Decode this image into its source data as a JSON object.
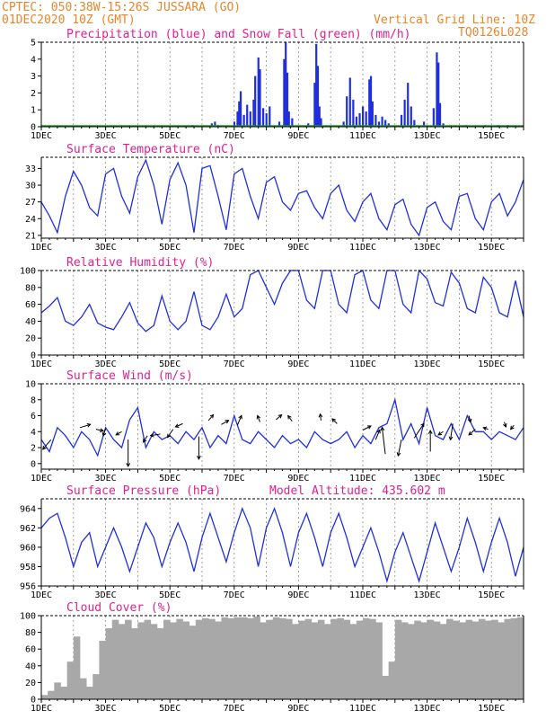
{
  "header": {
    "left_line1": "CPTEC:   050:38W-15:26S   JUSSARA (GO)",
    "left_line2": "01DEC2020 10Z (GMT)",
    "right_line1": "Vertical Grid Line: 10Z",
    "right_line2": "TQ0126L028"
  },
  "colors": {
    "header": "#e8862a",
    "title": "#e0208e",
    "line": "#1f2fe0",
    "snow": "#1a9a1a",
    "cloud": "#a8a8a8",
    "wind_arrow": "#000000"
  },
  "chart_data": [
    {
      "type": "bar",
      "title": "Precipitation (blue) and Snow Fall (green) (mm/h)",
      "x_labels": [
        "1DEC",
        "3DEC",
        "5DEC",
        "7DEC",
        "9DEC",
        "11DEC",
        "13DEC",
        "15DEC"
      ],
      "xlim_days": [
        0,
        15
      ],
      "ylim": [
        0,
        5
      ],
      "y_ticks": [
        "0",
        "1",
        "2",
        "3",
        "4",
        "5"
      ],
      "series": [
        {
          "name": "Precipitation",
          "values": [
            [
              1.4,
              0.05
            ],
            [
              2.8,
              0.05
            ],
            [
              4.7,
              0.1
            ],
            [
              5.3,
              0.2
            ],
            [
              5.4,
              0.3
            ],
            [
              5.5,
              0.1
            ],
            [
              6.0,
              0.3
            ],
            [
              6.1,
              0.9
            ],
            [
              6.15,
              1.5
            ],
            [
              6.2,
              2.1
            ],
            [
              6.3,
              0.7
            ],
            [
              6.4,
              1.3
            ],
            [
              6.5,
              0.9
            ],
            [
              6.6,
              1.6
            ],
            [
              6.65,
              3.0
            ],
            [
              6.75,
              4.1
            ],
            [
              6.8,
              3.4
            ],
            [
              6.9,
              1.1
            ],
            [
              7.0,
              0.8
            ],
            [
              7.1,
              1.2
            ],
            [
              7.4,
              0.3
            ],
            [
              7.55,
              4.0
            ],
            [
              7.6,
              5.0
            ],
            [
              7.65,
              3.2
            ],
            [
              7.7,
              0.9
            ],
            [
              7.8,
              0.5
            ],
            [
              8.3,
              0.2
            ],
            [
              8.5,
              2.6
            ],
            [
              8.55,
              4.9
            ],
            [
              8.6,
              3.6
            ],
            [
              8.65,
              1.2
            ],
            [
              8.7,
              0.5
            ],
            [
              9.4,
              0.3
            ],
            [
              9.5,
              1.8
            ],
            [
              9.6,
              2.9
            ],
            [
              9.7,
              1.6
            ],
            [
              9.8,
              0.6
            ],
            [
              9.9,
              0.8
            ],
            [
              10.0,
              1.2
            ],
            [
              10.1,
              0.9
            ],
            [
              10.2,
              2.8
            ],
            [
              10.25,
              3.0
            ],
            [
              10.3,
              1.5
            ],
            [
              10.4,
              0.7
            ],
            [
              10.5,
              0.3
            ],
            [
              10.6,
              0.6
            ],
            [
              10.7,
              0.4
            ],
            [
              10.8,
              0.2
            ],
            [
              11.2,
              0.7
            ],
            [
              11.3,
              1.6
            ],
            [
              11.4,
              2.6
            ],
            [
              11.5,
              1.2
            ],
            [
              11.6,
              0.4
            ],
            [
              11.9,
              0.3
            ],
            [
              12.2,
              1.1
            ],
            [
              12.3,
              4.4
            ],
            [
              12.35,
              3.8
            ],
            [
              12.4,
              1.4
            ],
            [
              12.5,
              0.2
            ],
            [
              13.2,
              0.1
            ],
            [
              13.8,
              0.1
            ],
            [
              14.2,
              0.1
            ],
            [
              14.5,
              0.1
            ]
          ]
        },
        {
          "name": "Snow Fall",
          "values": []
        }
      ]
    },
    {
      "type": "line",
      "title": "Surface Temperature (nC)",
      "x_labels": [
        "1DEC",
        "3DEC",
        "5DEC",
        "7DEC",
        "9DEC",
        "11DEC",
        "13DEC",
        "15DEC"
      ],
      "xlim_days": [
        0,
        15
      ],
      "ylim": [
        20.5,
        35
      ],
      "y_ticks": [
        "21",
        "24",
        "27",
        "30",
        "33"
      ],
      "x": [
        0,
        0.25,
        0.5,
        0.75,
        1,
        1.25,
        1.5,
        1.75,
        2,
        2.25,
        2.5,
        2.75,
        3,
        3.25,
        3.5,
        3.75,
        4,
        4.25,
        4.5,
        4.75,
        5,
        5.25,
        5.5,
        5.75,
        6,
        6.25,
        6.5,
        6.75,
        7,
        7.25,
        7.5,
        7.75,
        8,
        8.25,
        8.5,
        8.75,
        9,
        9.25,
        9.5,
        9.75,
        10,
        10.25,
        10.5,
        10.75,
        11,
        11.25,
        11.5,
        11.75,
        12,
        12.25,
        12.5,
        12.75,
        13,
        13.25,
        13.5,
        13.75,
        14,
        14.25,
        14.5,
        14.75,
        15
      ],
      "values": [
        27,
        24.5,
        21.5,
        28,
        32.5,
        30,
        26,
        24.5,
        32,
        33,
        28,
        25,
        31.5,
        34.5,
        30,
        23,
        31,
        34,
        30,
        21.5,
        33,
        33.5,
        28,
        22,
        32,
        33,
        28,
        24,
        30.5,
        31.5,
        27,
        25.5,
        28.5,
        29,
        26,
        24,
        28.5,
        30,
        25.5,
        23.5,
        27,
        28.5,
        24,
        22,
        26.5,
        27.5,
        23,
        21,
        26,
        27,
        23.5,
        22,
        28,
        28.5,
        24,
        22,
        27,
        28.5,
        24.5,
        27,
        31
      ]
    },
    {
      "type": "line",
      "title": "Relative Humidity (%)",
      "x_labels": [
        "1DEC",
        "3DEC",
        "5DEC",
        "7DEC",
        "9DEC",
        "11DEC",
        "13DEC",
        "15DEC"
      ],
      "xlim_days": [
        0,
        15
      ],
      "ylim": [
        0,
        100
      ],
      "y_ticks": [
        "0",
        "20",
        "40",
        "60",
        "80",
        "100"
      ],
      "x": [
        0,
        0.25,
        0.5,
        0.75,
        1,
        1.25,
        1.5,
        1.75,
        2,
        2.25,
        2.5,
        2.75,
        3,
        3.25,
        3.5,
        3.75,
        4,
        4.25,
        4.5,
        4.75,
        5,
        5.25,
        5.5,
        5.75,
        6,
        6.25,
        6.5,
        6.75,
        7,
        7.25,
        7.5,
        7.75,
        8,
        8.25,
        8.5,
        8.75,
        9,
        9.25,
        9.5,
        9.75,
        10,
        10.25,
        10.5,
        10.75,
        11,
        11.25,
        11.5,
        11.75,
        12,
        12.25,
        12.5,
        12.75,
        13,
        13.25,
        13.5,
        13.75,
        14,
        14.25,
        14.5,
        14.75,
        15
      ],
      "values": [
        50,
        58,
        68,
        40,
        35,
        45,
        60,
        38,
        33,
        30,
        45,
        62,
        38,
        28,
        35,
        70,
        40,
        30,
        40,
        75,
        35,
        30,
        45,
        72,
        45,
        55,
        95,
        100,
        80,
        60,
        85,
        100,
        100,
        65,
        55,
        100,
        100,
        60,
        50,
        95,
        100,
        65,
        55,
        100,
        100,
        60,
        50,
        100,
        90,
        62,
        58,
        98,
        85,
        55,
        50,
        92,
        80,
        50,
        45,
        88,
        45
      ]
    },
    {
      "type": "line",
      "title": "Surface Wind (m/s)",
      "x_labels": [
        "1DEC",
        "3DEC",
        "5DEC",
        "7DEC",
        "9DEC",
        "11DEC",
        "13DEC",
        "15DEC"
      ],
      "xlim_days": [
        0,
        15
      ],
      "ylim": [
        -0.7,
        10
      ],
      "y_ticks": [
        "0",
        "2",
        "4",
        "6",
        "8",
        "10"
      ],
      "x": [
        0,
        0.25,
        0.5,
        0.75,
        1,
        1.25,
        1.5,
        1.75,
        2,
        2.25,
        2.5,
        2.75,
        3,
        3.25,
        3.5,
        3.75,
        4,
        4.25,
        4.5,
        4.75,
        5,
        5.25,
        5.5,
        5.75,
        6,
        6.25,
        6.5,
        6.75,
        7,
        7.25,
        7.5,
        7.75,
        8,
        8.25,
        8.5,
        8.75,
        9,
        9.25,
        9.5,
        9.75,
        10,
        10.25,
        10.5,
        10.75,
        11,
        11.25,
        11.5,
        11.75,
        12,
        12.25,
        12.5,
        12.75,
        13,
        13.25,
        13.5,
        13.75,
        14,
        14.25,
        14.5,
        14.75,
        15
      ],
      "values": [
        3,
        1.5,
        4.5,
        3.5,
        2,
        4,
        3,
        1,
        4.5,
        3,
        2,
        5.5,
        7,
        2,
        4,
        3,
        3.5,
        2.5,
        4,
        3,
        4.5,
        2,
        3.5,
        2.5,
        6,
        3,
        2.5,
        4,
        3,
        2,
        3.5,
        2.5,
        3,
        2,
        4,
        3,
        2.5,
        3,
        4,
        2,
        3.5,
        2.5,
        4.5,
        5,
        8,
        3,
        5,
        2.5,
        7,
        3.5,
        3,
        5,
        3,
        6,
        4,
        4,
        3,
        4,
        3.5,
        3,
        4.5
      ],
      "arrows": [
        [
          0.3,
          3,
          -1,
          -1.2
        ],
        [
          1.2,
          4.5,
          1.3,
          0.4
        ],
        [
          1.7,
          4.3,
          0.9,
          -0.2
        ],
        [
          2.0,
          4.4,
          -0.3,
          -0.9
        ],
        [
          2.5,
          4,
          -0.7,
          -0.4
        ],
        [
          2.7,
          3,
          0,
          -3.3
        ],
        [
          3.3,
          3.5,
          -0.5,
          -0.8
        ],
        [
          3.7,
          3.7,
          -1.2,
          -0.2
        ],
        [
          4.1,
          4.3,
          -0.7,
          -1
        ],
        [
          4.4,
          5,
          -0.9,
          -0.4
        ],
        [
          4.9,
          3.4,
          0,
          -2.8
        ],
        [
          5.2,
          5.4,
          0.6,
          0.7
        ],
        [
          5.6,
          4.9,
          0.9,
          0.5
        ],
        [
          6.1,
          4.8,
          0.5,
          1.2
        ],
        [
          6.8,
          5.2,
          -0.3,
          0.8
        ],
        [
          7.3,
          5.5,
          0.7,
          0.6
        ],
        [
          7.8,
          5.3,
          -0.5,
          0.7
        ],
        [
          8.7,
          5.4,
          -0.1,
          0.8
        ],
        [
          9.2,
          5,
          -0.6,
          0.6
        ],
        [
          10.0,
          4.2,
          1,
          0.5
        ],
        [
          10.4,
          3,
          0.5,
          1.2
        ],
        [
          10.7,
          1.2,
          -0.4,
          3.3
        ],
        [
          11.2,
          3,
          -0.4,
          -2
        ],
        [
          11.6,
          3.2,
          1.2,
          1.8
        ],
        [
          12.1,
          1.5,
          0,
          2.6
        ],
        [
          12.5,
          4,
          -0.6,
          -0.4
        ],
        [
          12.8,
          5,
          -0.3,
          -2
        ],
        [
          13.3,
          6,
          0.2,
          -0.8
        ],
        [
          13.5,
          4.3,
          -0.8,
          -0.7
        ],
        [
          13.9,
          4.3,
          -0.6,
          0.2
        ],
        [
          14.4,
          5.2,
          0.2,
          -0.6
        ],
        [
          14.7,
          4.8,
          -0.4,
          -0.5
        ]
      ]
    },
    {
      "type": "line",
      "title": "Surface Pressure (hPa)",
      "annotation": "Model Altitude: 435.602  m",
      "x_labels": [
        "1DEC",
        "3DEC",
        "5DEC",
        "7DEC",
        "9DEC",
        "11DEC",
        "13DEC",
        "15DEC"
      ],
      "xlim_days": [
        0,
        15
      ],
      "ylim": [
        956,
        965
      ],
      "y_ticks": [
        "956",
        "958",
        "960",
        "962",
        "964"
      ],
      "x": [
        0,
        0.25,
        0.5,
        0.75,
        1,
        1.25,
        1.5,
        1.75,
        2,
        2.25,
        2.5,
        2.75,
        3,
        3.25,
        3.5,
        3.75,
        4,
        4.25,
        4.5,
        4.75,
        5,
        5.25,
        5.5,
        5.75,
        6,
        6.25,
        6.5,
        6.75,
        7,
        7.25,
        7.5,
        7.75,
        8,
        8.25,
        8.5,
        8.75,
        9,
        9.25,
        9.5,
        9.75,
        10,
        10.25,
        10.5,
        10.75,
        11,
        11.25,
        11.5,
        11.75,
        12,
        12.25,
        12.5,
        12.75,
        13,
        13.25,
        13.5,
        13.75,
        14,
        14.25,
        14.5,
        14.75,
        15
      ],
      "values": [
        962,
        963,
        963.5,
        961,
        958,
        960.5,
        961.5,
        958,
        960,
        962,
        960,
        957.5,
        960,
        962.5,
        961,
        958,
        960.5,
        962.5,
        960.5,
        957.5,
        961,
        963.5,
        961,
        958.5,
        961.5,
        964,
        962,
        958,
        962,
        964,
        961.5,
        958,
        961.5,
        963.5,
        961,
        958,
        961.5,
        963.5,
        961,
        958,
        960,
        962,
        959.5,
        956.5,
        959.5,
        961.5,
        959,
        956.5,
        959.5,
        962.5,
        960,
        957.5,
        960,
        963,
        960.5,
        957.5,
        960.5,
        963,
        960.5,
        957,
        960
      ]
    },
    {
      "type": "bar",
      "title": "Cloud Cover (%)",
      "x_labels": [
        "1DEC",
        "3DEC",
        "5DEC",
        "7DEC",
        "9DEC",
        "11DEC",
        "13DEC",
        "15DEC"
      ],
      "xlim_days": [
        0,
        15
      ],
      "ylim": [
        0,
        100
      ],
      "y_ticks": [
        "0",
        "20",
        "40",
        "60",
        "80",
        "100"
      ],
      "x": [
        0,
        0.2,
        0.4,
        0.6,
        0.8,
        1.0,
        1.2,
        1.4,
        1.6,
        1.8,
        2.0,
        2.2,
        2.4,
        2.6,
        2.8,
        3.0,
        3.2,
        3.4,
        3.6,
        3.8,
        4.0,
        4.2,
        4.4,
        4.6,
        4.8,
        5.0,
        5.2,
        5.4,
        5.6,
        5.8,
        6.0,
        6.2,
        6.4,
        6.6,
        6.8,
        7.0,
        7.2,
        7.4,
        7.6,
        7.8,
        8.0,
        8.2,
        8.4,
        8.6,
        8.8,
        9.0,
        9.2,
        9.4,
        9.6,
        9.8,
        10.0,
        10.2,
        10.4,
        10.6,
        10.8,
        11.0,
        11.2,
        11.4,
        11.6,
        11.8,
        12.0,
        12.2,
        12.4,
        12.6,
        12.8,
        13.0,
        13.2,
        13.4,
        13.6,
        13.8,
        14.0,
        14.2,
        14.4,
        14.6,
        14.8
      ],
      "values": [
        5,
        10,
        20,
        15,
        45,
        75,
        25,
        15,
        30,
        70,
        85,
        95,
        90,
        95,
        85,
        92,
        95,
        90,
        85,
        95,
        92,
        96,
        93,
        88,
        95,
        97,
        96,
        93,
        98,
        97,
        98,
        98,
        97,
        99,
        92,
        95,
        98,
        97,
        96,
        90,
        94,
        96,
        92,
        95,
        90,
        96,
        97,
        95,
        90,
        94,
        97,
        96,
        92,
        28,
        45,
        95,
        92,
        90,
        94,
        92,
        95,
        93,
        90,
        96,
        94,
        92,
        95,
        93,
        96,
        94,
        95,
        92,
        96,
        97,
        98
      ]
    }
  ]
}
